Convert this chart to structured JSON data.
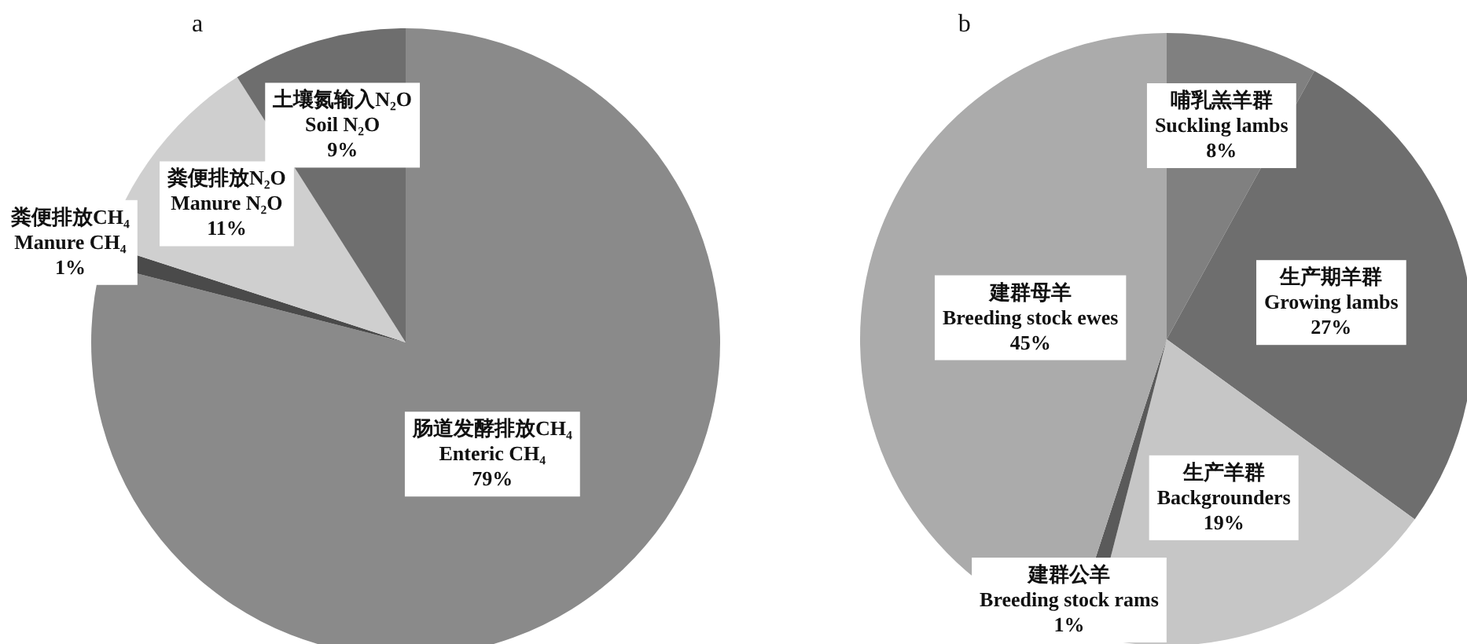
{
  "chart_data": [
    {
      "type": "pie",
      "title": "a",
      "categories": [
        "肠道发酵排放CH₄\nEnteric CH₄",
        "粪便排放CH₄\nManure CH₄",
        "粪便排放N₂O\nManure N₂O",
        "土壤氮输入N₂O\nSoil N₂O"
      ],
      "values": [
        79,
        1,
        11,
        9
      ],
      "value_labels": [
        "79%",
        "1%",
        "11%",
        "9%"
      ],
      "colors": [
        "#8a8a8a",
        "#4a4a4a",
        "#cfcfcf",
        "#6e6e6e"
      ]
    },
    {
      "type": "pie",
      "title": "b",
      "categories": [
        "哺乳羔羊群\nSuckling lambs",
        "生产期羊群\nGrowing lambs",
        "生产羊群\nBackgrounders",
        "建群公羊\nBreeding stock rams",
        "建群母羊\nBreeding stock ewes"
      ],
      "values": [
        8,
        27,
        19,
        1,
        45
      ],
      "value_labels": [
        "8%",
        "27%",
        "19%",
        "1%",
        "45%"
      ],
      "colors": [
        "#808080",
        "#6e6e6e",
        "#c6c6c6",
        "#5a5a5a",
        "#ababab"
      ]
    }
  ]
}
